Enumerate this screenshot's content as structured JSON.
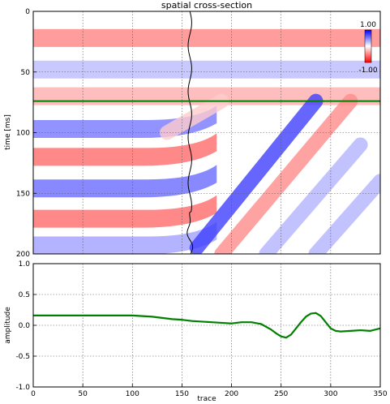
{
  "chart_data": [
    {
      "type": "heatmap",
      "title": "spatial cross-section",
      "xlabel": "",
      "ylabel": "time [ms]",
      "xlim": [
        0,
        350
      ],
      "ylim": [
        200,
        0
      ],
      "x_ticks": [],
      "y_ticks": [
        0,
        50,
        100,
        150,
        200
      ],
      "grid": true,
      "colorbar": {
        "max_label": "1.00",
        "min_label": "-1.00",
        "colors": [
          "#ff0000",
          "#ffffff",
          "#0000ff"
        ]
      },
      "marker": {
        "time": 74,
        "color": "#008000"
      },
      "trace_overlay": {
        "trace": 158,
        "color": "#000000"
      },
      "bands": [
        {
          "t": 22,
          "amp": 0.45,
          "tilted": false
        },
        {
          "t": 48,
          "amp": -0.25,
          "tilted": false
        },
        {
          "t": 70,
          "amp": 0.3,
          "tilted": false
        },
        {
          "t": 97,
          "amp": -0.5,
          "tilted": true
        },
        {
          "t": 120,
          "amp": 0.55,
          "tilted": true
        },
        {
          "t": 146,
          "amp": -0.55,
          "tilted": true
        },
        {
          "t": 171,
          "amp": 0.55,
          "tilted": true
        },
        {
          "t": 193,
          "amp": -0.35,
          "tilted": true
        }
      ]
    },
    {
      "type": "line",
      "title": "",
      "xlabel": "trace",
      "ylabel": "amplitude",
      "xlim": [
        0,
        350
      ],
      "ylim": [
        -1.0,
        1.0
      ],
      "x_ticks": [
        0,
        50,
        100,
        150,
        200,
        250,
        300,
        350
      ],
      "y_ticks": [
        "1.0",
        "0.5",
        "0.0",
        "-0.5",
        "-1.0"
      ],
      "grid": true,
      "series": [
        {
          "color": "#008000",
          "x": [
            0,
            20,
            40,
            60,
            80,
            100,
            110,
            120,
            130,
            140,
            150,
            160,
            170,
            180,
            190,
            200,
            210,
            220,
            230,
            240,
            245,
            250,
            255,
            260,
            265,
            270,
            275,
            280,
            285,
            290,
            295,
            300,
            305,
            310,
            320,
            330,
            340,
            350
          ],
          "y": [
            0.16,
            0.16,
            0.16,
            0.16,
            0.16,
            0.16,
            0.15,
            0.14,
            0.12,
            0.1,
            0.09,
            0.07,
            0.06,
            0.05,
            0.04,
            0.03,
            0.05,
            0.05,
            0.02,
            -0.07,
            -0.13,
            -0.18,
            -0.2,
            -0.15,
            -0.05,
            0.05,
            0.14,
            0.19,
            0.2,
            0.15,
            0.05,
            -0.05,
            -0.09,
            -0.1,
            -0.09,
            -0.08,
            -0.09,
            -0.05
          ]
        }
      ]
    }
  ]
}
